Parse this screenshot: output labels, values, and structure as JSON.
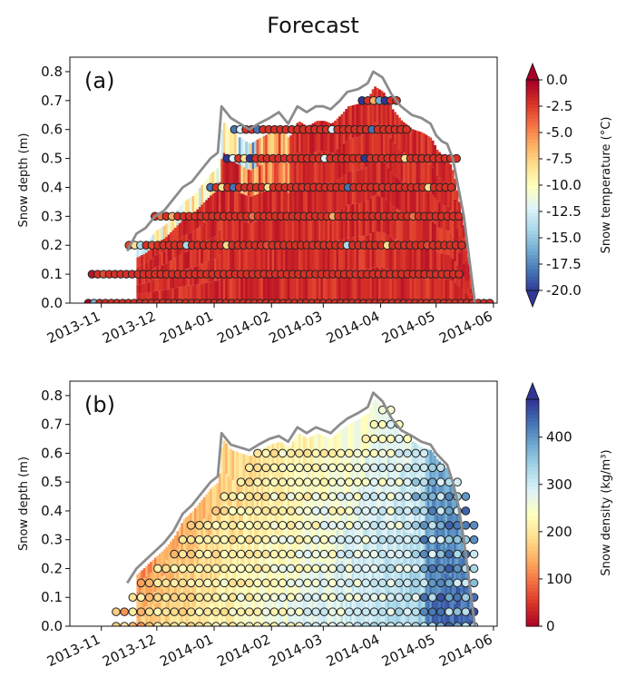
{
  "figure_title": "Forecast",
  "chart_data": [
    {
      "type": "heatmap",
      "panel_label": "(a)",
      "title": "",
      "xlabel": "",
      "ylabel": "Snow depth  (m)",
      "ylim": [
        0,
        0.85
      ],
      "yticks": [
        "0.0",
        "0.1",
        "0.2",
        "0.3",
        "0.4",
        "0.5",
        "0.6",
        "0.7",
        "0.8"
      ],
      "xlim": [
        "2013-10-15",
        "2014-06-03"
      ],
      "xticks": [
        "2013-11",
        "2013-12",
        "2014-01",
        "2014-02",
        "2014-03",
        "2014-04",
        "2014-05",
        "2014-06"
      ],
      "grid": false,
      "colorbar": {
        "label": "Snow temperature (°C)",
        "range": [
          -20,
          0
        ],
        "ticks": [
          "0.0",
          "-2.5",
          "-5.0",
          "-7.5",
          "-10.0",
          "-12.5",
          "-15.0",
          "-17.5",
          "-20.0"
        ],
        "extend": "both"
      },
      "depth_line_color": "#8c8c8c",
      "observed_levels_m": [
        0.0,
        0.1,
        0.2,
        0.3,
        0.4,
        0.5,
        0.6,
        0.7
      ],
      "observed_rows": [
        {
          "depth": 0.0,
          "start": "2013-10-25",
          "end": "2014-06-02",
          "colors": [
            "#a50026",
            "#7fb1d3",
            "#d73027",
            "#d73027"
          ]
        },
        {
          "depth": 0.1,
          "start": "2013-10-27",
          "end": "2014-05-16",
          "colors": [
            "#b2182b",
            "#d73027",
            "#e34a33",
            "#d73027"
          ]
        },
        {
          "depth": 0.2,
          "start": "2013-11-16",
          "end": "2014-05-16",
          "colors": [
            "#e34a33",
            "#fee090",
            "#abd9e9",
            "#d73027"
          ]
        },
        {
          "depth": 0.3,
          "start": "2013-11-30",
          "end": "2014-05-14",
          "colors": [
            "#d73027",
            "#f46d43",
            "#d73027",
            "#fdae61"
          ]
        },
        {
          "depth": 0.4,
          "start": "2013-12-30",
          "end": "2014-05-12",
          "colors": [
            "#4575b4",
            "#d73027",
            "#fee090",
            "#d73027"
          ]
        },
        {
          "depth": 0.5,
          "start": "2014-01-08",
          "end": "2014-05-12",
          "colors": [
            "#313695",
            "#e0f3f8",
            "#d73027",
            "#fee090"
          ]
        },
        {
          "depth": 0.6,
          "start": "2014-01-12",
          "end": "2014-04-18",
          "colors": [
            "#4575b4",
            "#e0f3f8",
            "#d73027",
            "#d73027"
          ]
        },
        {
          "depth": 0.7,
          "start": "2014-03-22",
          "end": "2014-04-12",
          "colors": [
            "#313695",
            "#d73027",
            "#fdae61",
            "#74add1"
          ]
        }
      ],
      "snow_depth_line": [
        [
          "2013-11-15",
          0.18
        ],
        [
          "2013-11-20",
          0.24
        ],
        [
          "2013-11-25",
          0.26
        ],
        [
          "2013-11-30",
          0.3
        ],
        [
          "2013-12-05",
          0.32
        ],
        [
          "2013-12-10",
          0.36
        ],
        [
          "2013-12-15",
          0.4
        ],
        [
          "2013-12-20",
          0.42
        ],
        [
          "2013-12-25",
          0.46
        ],
        [
          "2013-12-30",
          0.5
        ],
        [
          "2014-01-03",
          0.52
        ],
        [
          "2014-01-05",
          0.68
        ],
        [
          "2014-01-10",
          0.64
        ],
        [
          "2014-01-15",
          0.62
        ],
        [
          "2014-01-20",
          0.6
        ],
        [
          "2014-01-25",
          0.62
        ],
        [
          "2014-01-31",
          0.64
        ],
        [
          "2014-02-05",
          0.66
        ],
        [
          "2014-02-10",
          0.62
        ],
        [
          "2014-02-15",
          0.68
        ],
        [
          "2014-02-20",
          0.66
        ],
        [
          "2014-02-25",
          0.68
        ],
        [
          "2014-03-01",
          0.68
        ],
        [
          "2014-03-05",
          0.67
        ],
        [
          "2014-03-10",
          0.7
        ],
        [
          "2014-03-14",
          0.73
        ],
        [
          "2014-03-20",
          0.74
        ],
        [
          "2014-03-25",
          0.76
        ],
        [
          "2014-03-28",
          0.8
        ],
        [
          "2014-04-02",
          0.78
        ],
        [
          "2014-04-07",
          0.72
        ],
        [
          "2014-04-12",
          0.68
        ],
        [
          "2014-04-18",
          0.65
        ],
        [
          "2014-04-23",
          0.64
        ],
        [
          "2014-04-28",
          0.62
        ],
        [
          "2014-05-01",
          0.58
        ],
        [
          "2014-05-04",
          0.56
        ],
        [
          "2014-05-07",
          0.55
        ],
        [
          "2014-05-10",
          0.5
        ],
        [
          "2014-05-13",
          0.4
        ],
        [
          "2014-05-16",
          0.3
        ],
        [
          "2014-05-19",
          0.15
        ],
        [
          "2014-05-22",
          0.0
        ]
      ]
    },
    {
      "type": "heatmap",
      "panel_label": "(b)",
      "title": "",
      "xlabel": "",
      "ylabel": "Snow depth (m)",
      "ylim": [
        0,
        0.85
      ],
      "yticks": [
        "0.0",
        "0.1",
        "0.2",
        "0.3",
        "0.4",
        "0.5",
        "0.6",
        "0.7",
        "0.8"
      ],
      "xlim": [
        "2013-10-15",
        "2014-06-03"
      ],
      "xticks": [
        "2013-11",
        "2013-12",
        "2014-01",
        "2014-02",
        "2014-03",
        "2014-04",
        "2014-05",
        "2014-06"
      ],
      "grid": false,
      "colorbar": {
        "label": "Snow density (kg/m³)",
        "range": [
          0,
          480
        ],
        "ticks": [
          "0",
          "100",
          "200",
          "300",
          "400"
        ],
        "extend": "max"
      },
      "depth_line_color": "#8c8c8c",
      "observed_levels_m": [
        0.0,
        0.05,
        0.1,
        0.15,
        0.2,
        0.25,
        0.3,
        0.35,
        0.4,
        0.45,
        0.5,
        0.55,
        0.6,
        0.65,
        0.7,
        0.75
      ],
      "observed_profile_interval_days": 4.5,
      "observed_profiles_start": "2013-11-09",
      "observed_profiles_end": "2014-05-16",
      "observed_profile_tops_m": [
        0.05,
        0.05,
        0.1,
        0.15,
        0.15,
        0.2,
        0.2,
        0.25,
        0.3,
        0.35,
        0.35,
        0.35,
        0.4,
        0.45,
        0.45,
        0.5,
        0.55,
        0.6,
        0.6,
        0.6,
        0.6,
        0.6,
        0.6,
        0.6,
        0.6,
        0.6,
        0.6,
        0.6,
        0.6,
        0.6,
        0.65,
        0.7,
        0.75,
        0.75,
        0.7,
        0.65,
        0.6,
        0.6,
        0.55,
        0.55,
        0.5,
        0.5,
        0.45,
        0.35
      ],
      "snow_depth_line": [
        [
          "2013-11-15",
          0.15
        ],
        [
          "2013-11-20",
          0.2
        ],
        [
          "2013-11-25",
          0.23
        ],
        [
          "2013-11-30",
          0.26
        ],
        [
          "2013-12-05",
          0.29
        ],
        [
          "2013-12-10",
          0.33
        ],
        [
          "2013-12-15",
          0.39
        ],
        [
          "2013-12-20",
          0.42
        ],
        [
          "2013-12-25",
          0.46
        ],
        [
          "2013-12-30",
          0.5
        ],
        [
          "2014-01-03",
          0.52
        ],
        [
          "2014-01-05",
          0.67
        ],
        [
          "2014-01-10",
          0.63
        ],
        [
          "2014-01-15",
          0.62
        ],
        [
          "2014-01-20",
          0.61
        ],
        [
          "2014-01-25",
          0.63
        ],
        [
          "2014-01-31",
          0.65
        ],
        [
          "2014-02-05",
          0.66
        ],
        [
          "2014-02-10",
          0.64
        ],
        [
          "2014-02-15",
          0.69
        ],
        [
          "2014-02-20",
          0.67
        ],
        [
          "2014-02-25",
          0.69
        ],
        [
          "2014-03-01",
          0.68
        ],
        [
          "2014-03-05",
          0.67
        ],
        [
          "2014-03-10",
          0.7
        ],
        [
          "2014-03-14",
          0.72
        ],
        [
          "2014-03-20",
          0.74
        ],
        [
          "2014-03-25",
          0.76
        ],
        [
          "2014-03-28",
          0.81
        ],
        [
          "2014-04-02",
          0.78
        ],
        [
          "2014-04-07",
          0.72
        ],
        [
          "2014-04-12",
          0.68
        ],
        [
          "2014-04-18",
          0.66
        ],
        [
          "2014-04-23",
          0.64
        ],
        [
          "2014-04-28",
          0.63
        ],
        [
          "2014-05-01",
          0.6
        ],
        [
          "2014-05-04",
          0.58
        ],
        [
          "2014-05-07",
          0.56
        ],
        [
          "2014-05-10",
          0.5
        ],
        [
          "2014-05-13",
          0.42
        ],
        [
          "2014-05-16",
          0.3
        ],
        [
          "2014-05-19",
          0.15
        ],
        [
          "2014-05-22",
          0.0
        ]
      ]
    }
  ]
}
